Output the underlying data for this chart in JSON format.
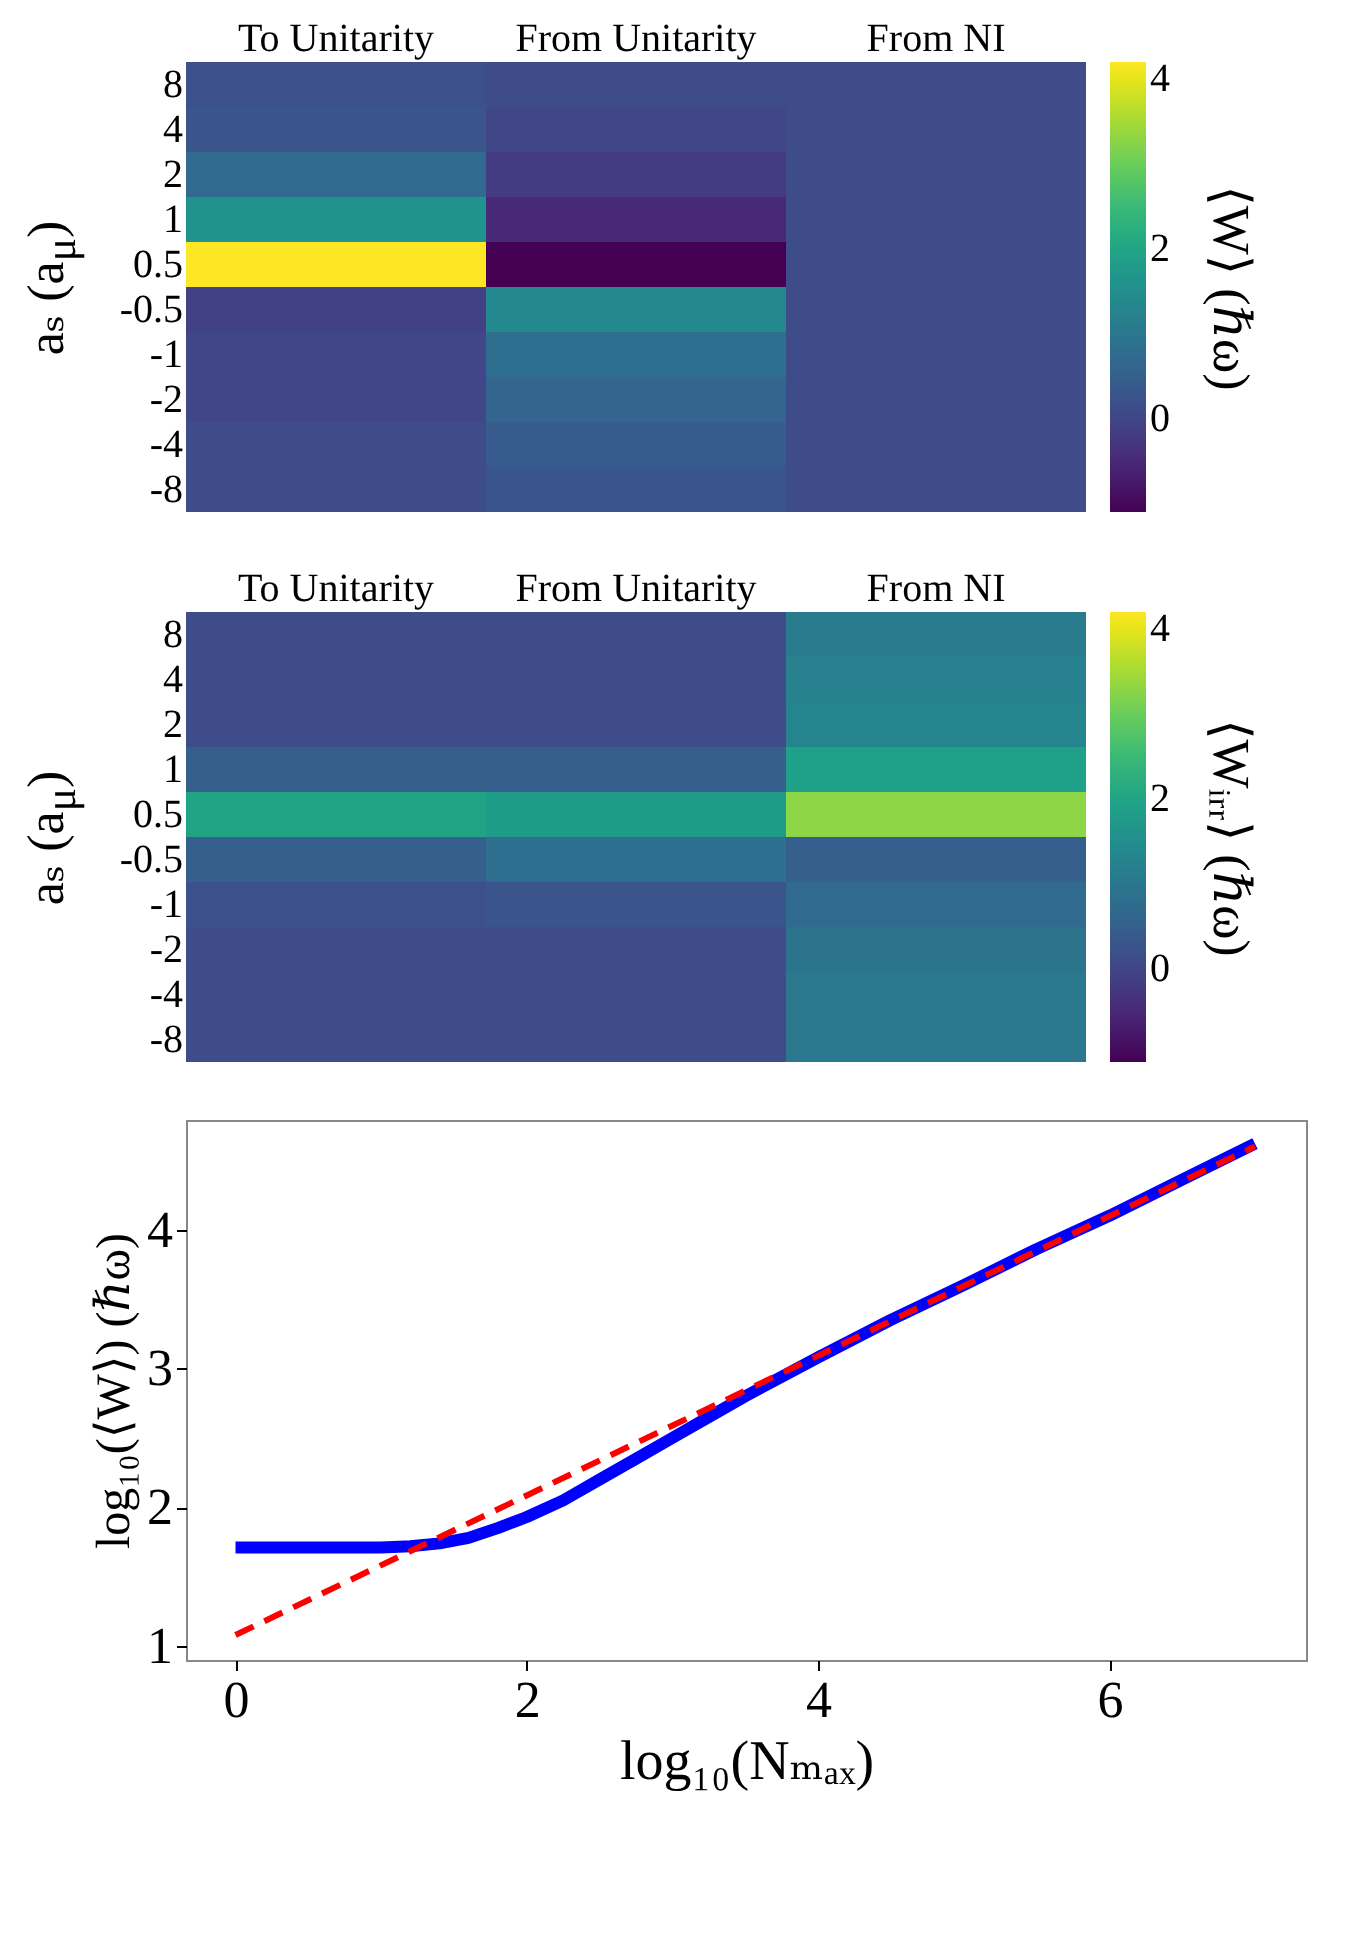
{
  "chart_data": [
    {
      "type": "heatmap",
      "categories": [
        "To Unitarity",
        "From Unitarity",
        "From NI"
      ],
      "y_categories": [
        "8",
        "4",
        "2",
        "1",
        "0.5",
        "-0.5",
        "-1",
        "-2",
        "-4",
        "-8"
      ],
      "ylabel": "aₛ (a$_{μ}$)",
      "clabel": "⟨W⟩ (ℏω)",
      "clim": [
        -1.1,
        4.2
      ],
      "cticks": [
        0,
        2,
        4
      ],
      "cells": [
        [
          0.2,
          0.1,
          0.1
        ],
        [
          0.3,
          0.0,
          0.1
        ],
        [
          0.7,
          -0.2,
          0.1
        ],
        [
          1.6,
          -0.5,
          0.1
        ],
        [
          4.2,
          -1.1,
          0.1
        ],
        [
          -0.1,
          1.4,
          0.1
        ],
        [
          0.0,
          0.8,
          0.1
        ],
        [
          0.0,
          0.6,
          0.1
        ],
        [
          0.1,
          0.4,
          0.1
        ],
        [
          0.1,
          0.3,
          0.1
        ]
      ]
    },
    {
      "type": "heatmap",
      "categories": [
        "To Unitarity",
        "From Unitarity",
        "From NI"
      ],
      "y_categories": [
        "8",
        "4",
        "2",
        "1",
        "0.5",
        "-0.5",
        "-1",
        "-2",
        "-4",
        "-8"
      ],
      "ylabel": "aₛ (a$_{μ}$)",
      "clabel": "⟨Wᵢᵣᵣ⟩ (ℏω)",
      "clim": [
        -1.1,
        4.2
      ],
      "cticks": [
        0,
        2,
        4
      ],
      "cells": [
        [
          0.1,
          0.1,
          1.1
        ],
        [
          0.1,
          0.1,
          1.2
        ],
        [
          0.1,
          0.1,
          1.3
        ],
        [
          0.5,
          0.5,
          1.9
        ],
        [
          2.0,
          1.8,
          3.3
        ],
        [
          0.5,
          0.8,
          0.5
        ],
        [
          0.2,
          0.3,
          0.7
        ],
        [
          0.1,
          0.1,
          0.9
        ],
        [
          0.1,
          0.1,
          1.0
        ],
        [
          0.1,
          0.1,
          1.0
        ]
      ]
    },
    {
      "type": "line",
      "xlabel": "log₁₀(Nₘₐₓ)",
      "ylabel": "log₁₀(⟨W⟩) (ℏω)",
      "xlim": [
        -0.34,
        7.35
      ],
      "ylim": [
        0.9,
        4.79
      ],
      "xticks": [
        0,
        2,
        4,
        6
      ],
      "yticks": [
        1,
        2,
        3,
        4
      ],
      "grid": false,
      "series": [
        {
          "color": "#0000ff",
          "line_style": "solid",
          "x": [
            0,
            0.5,
            1,
            1.2,
            1.4,
            1.6,
            1.8,
            2,
            2.25,
            2.5,
            2.75,
            3,
            3.25,
            3.5,
            4,
            4.5,
            5,
            5.5,
            6,
            6.5,
            7
          ],
          "values": [
            1.71,
            1.71,
            1.71,
            1.72,
            1.74,
            1.78,
            1.85,
            1.93,
            2.05,
            2.2,
            2.35,
            2.5,
            2.65,
            2.8,
            3.08,
            3.35,
            3.6,
            3.86,
            4.1,
            4.36,
            4.62
          ]
        },
        {
          "color": "#ff0000",
          "line_style": "dashed",
          "x": [
            0,
            7
          ],
          "values": [
            1.08,
            4.6
          ]
        }
      ]
    }
  ]
}
